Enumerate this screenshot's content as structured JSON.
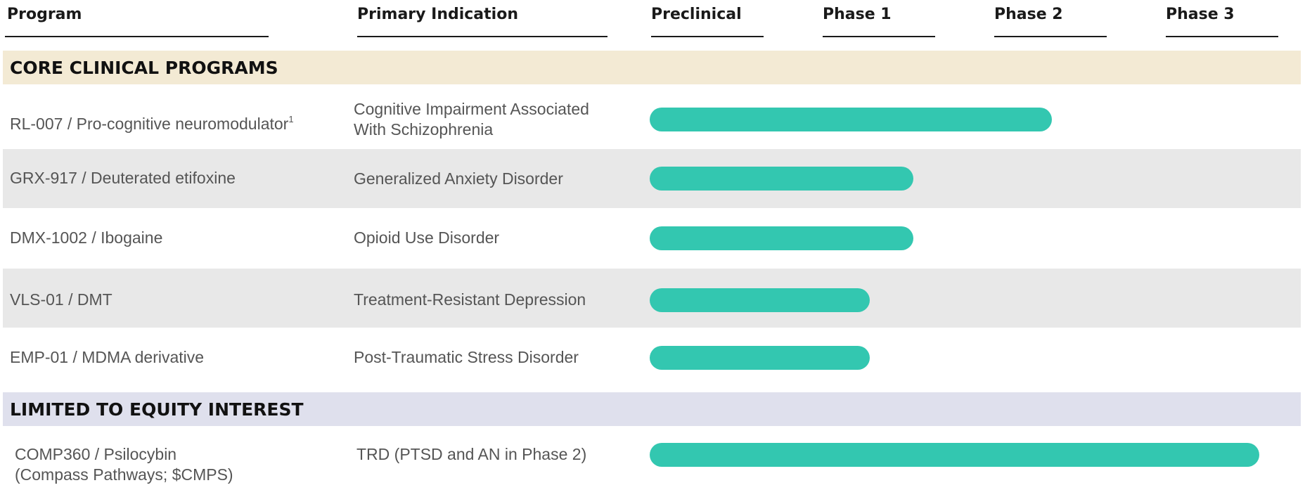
{
  "header": {
    "program": "Program",
    "indication": "Primary Indication",
    "stages": [
      "Preclinical",
      "Phase 1",
      "Phase 2",
      "Phase 3"
    ]
  },
  "sections": [
    {
      "title": "CORE CLINICAL PROGRAMS",
      "band_color": "#f3ead4"
    },
    {
      "title": "LIMITED TO EQUITY INTEREST",
      "band_color": "#dfe0ed"
    }
  ],
  "rows": [
    {
      "program": "RL-007 / Pro-cognitive neuromodulator",
      "program_sup": "1",
      "indication_lines": [
        "Cognitive Impairment Associated",
        "With Schizophrenia"
      ],
      "progress": 0.64
    },
    {
      "program": "GRX-917 / Deuterated etifoxine",
      "indication_lines": [
        "Generalized Anxiety Disorder"
      ],
      "progress": 0.42
    },
    {
      "program": "DMX-1002 / Ibogaine",
      "indication_lines": [
        "Opioid Use Disorder"
      ],
      "progress": 0.42
    },
    {
      "program": "VLS-01 / DMT",
      "indication_lines": [
        "Treatment-Resistant Depression"
      ],
      "progress": 0.35
    },
    {
      "program": "EMP-01 / MDMA derivative",
      "indication_lines": [
        "Post-Traumatic Stress Disorder"
      ],
      "progress": 0.35
    },
    {
      "program_lines": [
        "COMP360 / Psilocybin",
        "(Compass Pathways; $CMPS)"
      ],
      "indication_lines": [
        "TRD (PTSD and AN in Phase 2)"
      ],
      "progress": 0.97
    }
  ],
  "colors": {
    "bar": "#33c7b0",
    "stripe": "#e8e8e8",
    "header_text": "#1a1a1a"
  },
  "chart_data": {
    "type": "bar",
    "orientation": "horizontal",
    "x_axis_categories": [
      "Preclinical",
      "Phase 1",
      "Phase 2",
      "Phase 3"
    ],
    "categories": [
      "RL-007 / Pro-cognitive neuromodulator",
      "GRX-917 / Deuterated etifoxine",
      "DMX-1002 / Ibogaine",
      "VLS-01 / DMT",
      "EMP-01 / MDMA derivative",
      "COMP360 / Psilocybin (Compass Pathways; $CMPS)"
    ],
    "values": [
      2.6,
      1.7,
      1.7,
      1.4,
      1.4,
      3.9
    ],
    "xlim": [
      0,
      4
    ],
    "grid": false
  }
}
